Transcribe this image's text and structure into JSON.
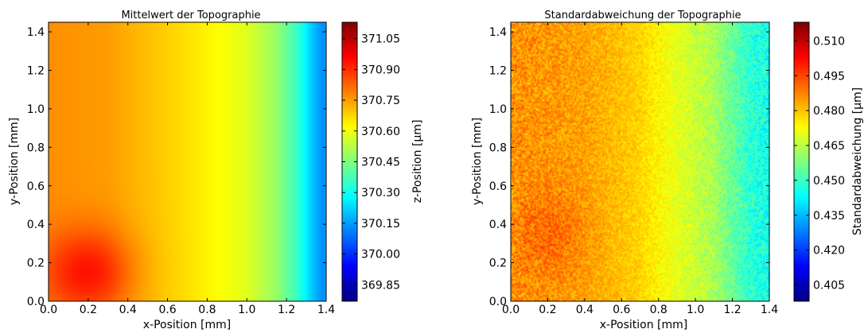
{
  "chart_data": [
    {
      "type": "heatmap",
      "title": "Mittelwert der Topographie",
      "xlabel": "x-Position [mm]",
      "ylabel": "y-Position [mm]",
      "xlim": [
        0.0,
        1.4
      ],
      "ylim": [
        0.0,
        1.45
      ],
      "x_ticks": [
        "0.0",
        "0.2",
        "0.4",
        "0.6",
        "0.8",
        "1.0",
        "1.2",
        "1.4"
      ],
      "y_ticks": [
        "0.0",
        "0.2",
        "0.4",
        "0.6",
        "0.8",
        "1.0",
        "1.2",
        "1.4"
      ],
      "colorbar": {
        "label": "z-Position [µm]",
        "range": [
          369.77,
          371.13
        ],
        "ticks": [
          "369.85",
          "370.00",
          "370.15",
          "370.30",
          "370.45",
          "370.60",
          "370.75",
          "370.90",
          "371.05"
        ],
        "colormap": "jet"
      },
      "field_model": {
        "x_profile_x": [
          0.0,
          0.3,
          0.7,
          1.0,
          1.15,
          1.25,
          1.32,
          1.38,
          1.4
        ],
        "x_profile_value": [
          370.77,
          370.75,
          370.66,
          370.58,
          370.48,
          370.36,
          370.22,
          370.13,
          370.15
        ],
        "hotspot": {
          "x": 0.2,
          "y": 0.15,
          "sigma_x": 0.16,
          "sigma_y": 0.16,
          "value": 0.18
        }
      }
    },
    {
      "type": "heatmap",
      "title": "Standardabweichung der Topographie",
      "xlabel": "x-Position [mm]",
      "ylabel": "y-Position [mm]",
      "xlim": [
        0.0,
        1.4
      ],
      "ylim": [
        0.0,
        1.45
      ],
      "x_ticks": [
        "0.0",
        "0.2",
        "0.4",
        "0.6",
        "0.8",
        "1.0",
        "1.2",
        "1.4"
      ],
      "y_ticks": [
        "0.0",
        "0.2",
        "0.4",
        "0.6",
        "0.8",
        "1.0",
        "1.2",
        "1.4"
      ],
      "colorbar": {
        "label": "Standardabweichung [µm]",
        "range": [
          0.398,
          0.518
        ],
        "ticks": [
          "0.405",
          "0.420",
          "0.435",
          "0.450",
          "0.465",
          "0.480",
          "0.495",
          "0.510"
        ],
        "colormap": "jet"
      },
      "field_model": {
        "x_profile_x": [
          0.0,
          0.4,
          0.7,
          0.9,
          1.1,
          1.2,
          1.3,
          1.4
        ],
        "x_profile_value": [
          0.486,
          0.484,
          0.478,
          0.47,
          0.463,
          0.455,
          0.448,
          0.445
        ],
        "hotspot": {
          "x": 0.22,
          "y": 0.35,
          "sigma_x": 0.12,
          "sigma_y": 0.15,
          "value": 0.006
        },
        "noise_amplitude": 0.006
      }
    }
  ]
}
